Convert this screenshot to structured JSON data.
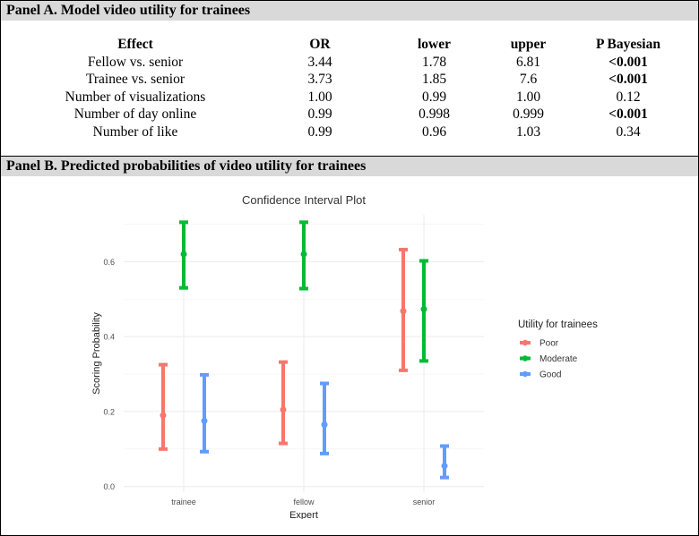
{
  "panel_a": {
    "title": "Panel A. Model video utility for trainees",
    "headers": [
      "Effect",
      "OR",
      "lower",
      "upper",
      "P Bayesian"
    ],
    "rows": [
      {
        "effect": "Fellow vs. senior",
        "or": "3.44",
        "lower": "1.78",
        "upper": "6.81",
        "p": "<0.001",
        "p_bold": true
      },
      {
        "effect": "Trainee vs. senior",
        "or": "3.73",
        "lower": "1.85",
        "upper": "7.6",
        "p": "<0.001",
        "p_bold": true
      },
      {
        "effect": "Number of visualizations",
        "or": "1.00",
        "lower": "0.99",
        "upper": "1.00",
        "p": "0.12",
        "p_bold": false
      },
      {
        "effect": "Number of day online",
        "or": "0.99",
        "lower": "0.998",
        "upper": "0.999",
        "p": "<0.001",
        "p_bold": true
      },
      {
        "effect": "Number of like",
        "or": "0.99",
        "lower": "0.96",
        "upper": "1.03",
        "p": "0.34",
        "p_bold": false
      }
    ]
  },
  "panel_b": {
    "title": "Panel B.  Predicted probabilities of video utility for trainees"
  },
  "chart_data": {
    "type": "errorbar",
    "title": "Confidence Interval Plot",
    "xlabel": "Expert",
    "ylabel": "Scoring Probability",
    "categories": [
      "trainee",
      "fellow",
      "senior"
    ],
    "ylim": [
      -0.015,
      0.725
    ],
    "yticks": [
      "0.0",
      "0.2",
      "0.4",
      "0.6"
    ],
    "ytick_values": [
      0,
      0.2,
      0.4,
      0.6
    ],
    "legend_title": "Utility for trainees",
    "series": [
      {
        "name": "Poor",
        "color": "#F8766D",
        "points": [
          {
            "x": "trainee",
            "y": 0.19,
            "lower": 0.1,
            "upper": 0.325
          },
          {
            "x": "fellow",
            "y": 0.205,
            "lower": 0.115,
            "upper": 0.332
          },
          {
            "x": "senior",
            "y": 0.468,
            "lower": 0.31,
            "upper": 0.632
          }
        ]
      },
      {
        "name": "Moderate",
        "color": "#00BA38",
        "points": [
          {
            "x": "trainee",
            "y": 0.62,
            "lower": 0.53,
            "upper": 0.705
          },
          {
            "x": "fellow",
            "y": 0.62,
            "lower": 0.528,
            "upper": 0.705
          },
          {
            "x": "senior",
            "y": 0.473,
            "lower": 0.335,
            "upper": 0.602
          }
        ]
      },
      {
        "name": "Good",
        "color": "#619CFF",
        "points": [
          {
            "x": "trainee",
            "y": 0.175,
            "lower": 0.093,
            "upper": 0.298
          },
          {
            "x": "fellow",
            "y": 0.165,
            "lower": 0.088,
            "upper": 0.275
          },
          {
            "x": "senior",
            "y": 0.055,
            "lower": 0.024,
            "upper": 0.108
          }
        ]
      }
    ]
  }
}
